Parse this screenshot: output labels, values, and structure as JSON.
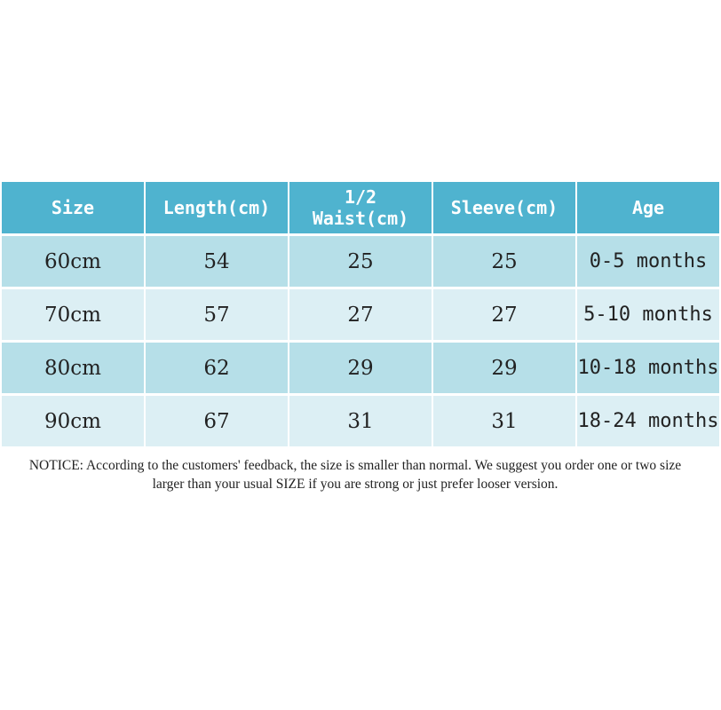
{
  "table": {
    "headers": {
      "size": "Size",
      "length": "Length(cm)",
      "waist_line1": "1/2",
      "waist_line2": "Waist(cm)",
      "sleeve": "Sleeve(cm)",
      "age": "Age"
    },
    "rows": [
      {
        "size": "60cm",
        "length": "54",
        "waist": "25",
        "sleeve": "25",
        "age": "0-5 months"
      },
      {
        "size": "70cm",
        "length": "57",
        "waist": "27",
        "sleeve": "27",
        "age": "5-10 months"
      },
      {
        "size": "80cm",
        "length": "62",
        "waist": "29",
        "sleeve": "29",
        "age": "10-18 months"
      },
      {
        "size": "90cm",
        "length": "67",
        "waist": "31",
        "sleeve": "31",
        "age": "18-24 months"
      }
    ]
  },
  "notice": "NOTICE: According to the customers' feedback, the size is smaller than normal. We suggest you order one or two size larger than your usual SIZE if you are strong or just prefer looser version.",
  "colors": {
    "header_bg": "#4fb3cf",
    "row_dark": "#b6dfe8",
    "row_light": "#dceff4"
  }
}
